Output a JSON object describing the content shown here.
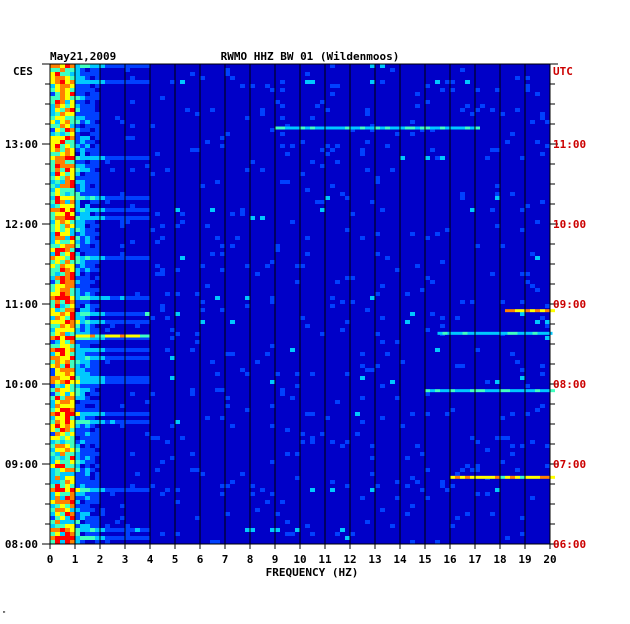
{
  "header": {
    "date": "May21,2009",
    "station": "RWMO HHZ BW 01 (Wildenmoos)",
    "left_zone": "CES",
    "right_zone": "UTC",
    "footnote": "\""
  },
  "colors": {
    "background": "#0000c8",
    "utc_labels": "#cc0000",
    "gridline": "#000000"
  },
  "chart_data": {
    "type": "heatmap",
    "title": "RWMO HHZ BW 01 (Wildenmoos)",
    "xlabel": "FREQUENCY (HZ)",
    "ylabel": "",
    "xlim": [
      0,
      20
    ],
    "x_ticks": [
      "0",
      "1",
      "2",
      "3",
      "4",
      "5",
      "6",
      "7",
      "8",
      "9",
      "10",
      "11",
      "12",
      "13",
      "14",
      "15",
      "16",
      "17",
      "18",
      "19",
      "20"
    ],
    "y_left_ticks": [
      "08:00",
      "09:00",
      "10:00",
      "11:00",
      "12:00",
      "13:00"
    ],
    "y_right_ticks": [
      "06:00",
      "07:00",
      "08:00",
      "09:00",
      "10:00",
      "11:00"
    ],
    "y_range_hours_ces": [
      8.0,
      14.0
    ],
    "colorscale": [
      "#000080",
      "#0000c8",
      "#0040ff",
      "#00c8ff",
      "#40ffc0",
      "#ffff00",
      "#ff8000",
      "#ff0000"
    ],
    "hot_band_hz": [
      0.2,
      1.0
    ],
    "narrowband_features": [
      {
        "time_ces": "13:12",
        "hz_range": [
          9.0,
          17.0
        ],
        "level": "medium"
      },
      {
        "time_ces": "10:36",
        "hz_range": [
          1.0,
          4.0
        ],
        "level": "high"
      },
      {
        "time_ces": "10:38",
        "hz_range": [
          15.5,
          20.0
        ],
        "level": "medium"
      },
      {
        "time_ces": "10:55",
        "hz_range": [
          18.2,
          20.0
        ],
        "level": "high"
      },
      {
        "time_ces": "09:55",
        "hz_range": [
          15.0,
          20.0
        ],
        "level": "medium"
      },
      {
        "time_ces": "08:50",
        "hz_range": [
          16.0,
          20.0
        ],
        "level": "high"
      }
    ]
  }
}
